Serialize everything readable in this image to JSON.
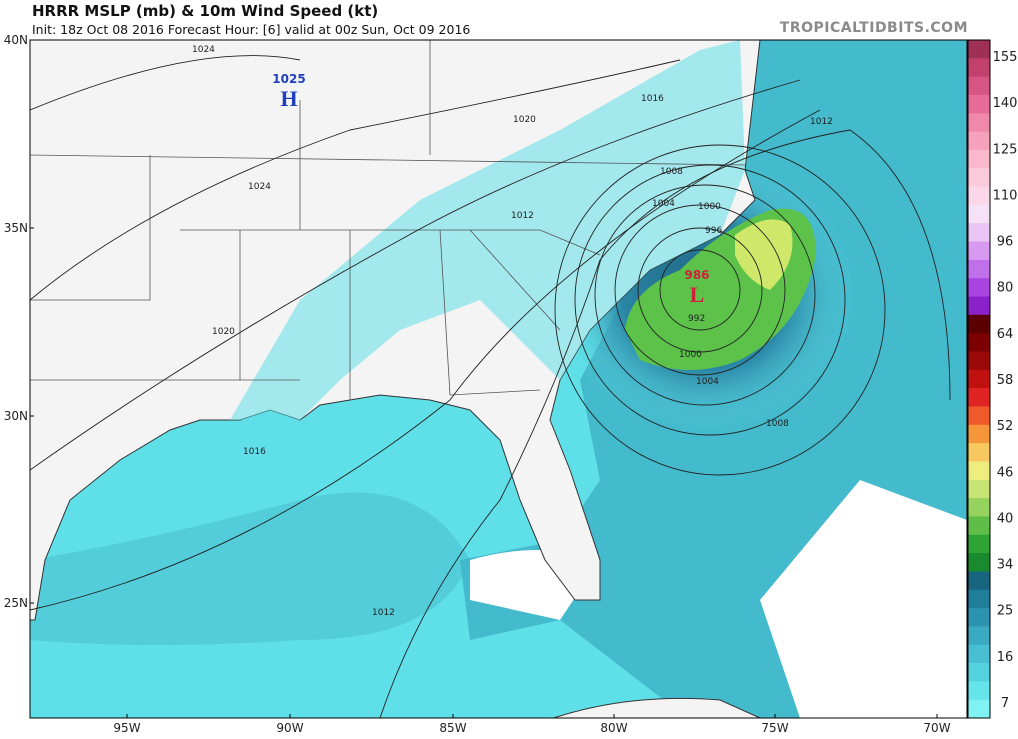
{
  "header": {
    "title": "HRRR MSLP (mb) & 10m Wind Speed (kt)",
    "subtitle": "Init: 18z Oct 08 2016   Forecast Hour: [6]   valid at 00z Sun, Oct 09 2016",
    "credit": "TROPICALTIDBITS.COM"
  },
  "map": {
    "latitude_labels": [
      "40N",
      "35N",
      "30N",
      "25N"
    ],
    "longitude_labels": [
      "95W",
      "90W",
      "85W",
      "80W",
      "75W",
      "70W"
    ],
    "isobar_labels": [
      "1024",
      "1020",
      "1016",
      "1012",
      "1024",
      "1008",
      "1004",
      "1000",
      "1012",
      "996",
      "992",
      "1000",
      "1004",
      "1008",
      "1020",
      "1016",
      "1012"
    ],
    "high": {
      "value": "1025",
      "symbol": "H"
    },
    "low": {
      "value": "986",
      "symbol": "L"
    }
  },
  "colorbar": {
    "labels": [
      "155",
      "140",
      "125",
      "110",
      "96",
      "80",
      "64",
      "58",
      "52",
      "46",
      "40",
      "34",
      "25",
      "16",
      "7"
    ]
  }
}
